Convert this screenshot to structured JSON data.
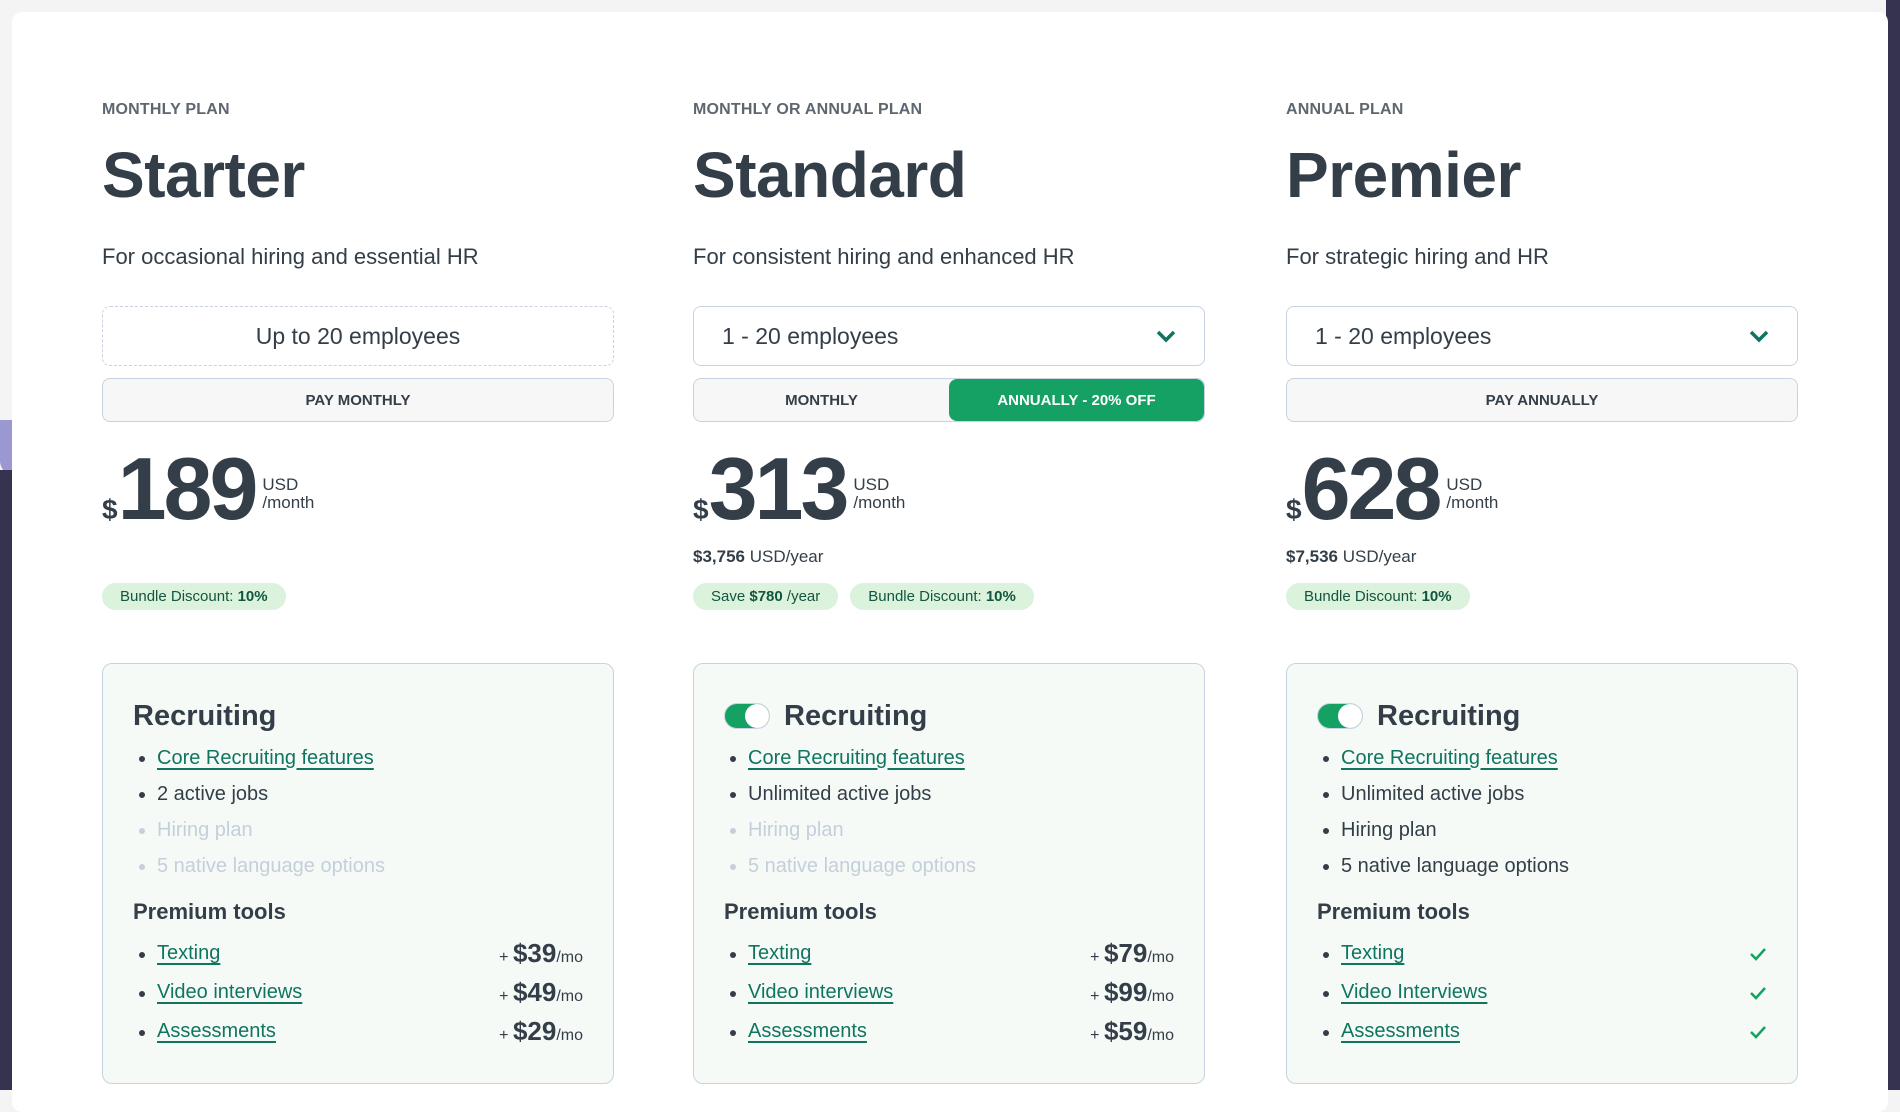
{
  "plans": [
    {
      "kicker": "MONTHLY PLAN",
      "name": "Starter",
      "tagline": "For occasional hiring and essential HR",
      "employees": "Up to 20 employees",
      "selector": false,
      "billing": [
        {
          "label": "PAY MONTHLY",
          "active": false
        }
      ],
      "currency": "$",
      "price": "189",
      "unit1": "USD",
      "unit2": "/month",
      "yearly_amount": "",
      "yearly_unit": "",
      "badges": [
        {
          "text": "Bundle Discount: ",
          "bold": "10%",
          "suffix": ""
        }
      ],
      "toggle": false,
      "section": "Recruiting",
      "features": [
        {
          "text": "Core Recruiting features",
          "link": true,
          "dim": false
        },
        {
          "text": "2 active jobs",
          "link": false,
          "dim": false
        },
        {
          "text": "Hiring plan",
          "link": false,
          "dim": true
        },
        {
          "text": "5 native language options",
          "link": false,
          "dim": true
        }
      ],
      "tools_title": "Premium tools",
      "tools": [
        {
          "name": "Texting",
          "plus": "+ ",
          "price": "$39",
          "per": "/mo"
        },
        {
          "name": "Video interviews",
          "plus": "+ ",
          "price": "$49",
          "per": "/mo"
        },
        {
          "name": "Assessments",
          "plus": "+ ",
          "price": "$29",
          "per": "/mo"
        }
      ]
    },
    {
      "kicker": "MONTHLY OR ANNUAL PLAN",
      "name": "Standard",
      "tagline": "For consistent hiring and enhanced HR",
      "employees": "1 - 20 employees",
      "selector": true,
      "billing": [
        {
          "label": "MONTHLY",
          "active": false
        },
        {
          "label": "ANNUALLY - 20% OFF",
          "active": true
        }
      ],
      "currency": "$",
      "price": "313",
      "unit1": "USD",
      "unit2": "/month",
      "yearly_amount": "$3,756",
      "yearly_unit": " USD/year",
      "badges": [
        {
          "text": "Save ",
          "bold": "$780",
          "suffix": " /year"
        },
        {
          "text": "Bundle Discount: ",
          "bold": "10%",
          "suffix": ""
        }
      ],
      "toggle": true,
      "section": "Recruiting",
      "features": [
        {
          "text": "Core Recruiting features",
          "link": true,
          "dim": false
        },
        {
          "text": "Unlimited active jobs",
          "link": false,
          "dim": false
        },
        {
          "text": "Hiring plan",
          "link": false,
          "dim": true
        },
        {
          "text": "5 native language options",
          "link": false,
          "dim": true
        }
      ],
      "tools_title": "Premium tools",
      "tools": [
        {
          "name": "Texting",
          "plus": "+ ",
          "price": "$79",
          "per": "/mo"
        },
        {
          "name": "Video interviews",
          "plus": "+ ",
          "price": "$99",
          "per": "/mo"
        },
        {
          "name": "Assessments",
          "plus": "+ ",
          "price": "$59",
          "per": "/mo"
        }
      ]
    },
    {
      "kicker": "ANNUAL PLAN",
      "name": "Premier",
      "tagline": "For strategic hiring and HR",
      "employees": "1 - 20 employees",
      "selector": true,
      "billing": [
        {
          "label": "PAY ANNUALLY",
          "active": false
        }
      ],
      "currency": "$",
      "price": "628",
      "unit1": "USD",
      "unit2": "/month",
      "yearly_amount": "$7,536",
      "yearly_unit": " USD/year",
      "badges": [
        {
          "text": "Bundle Discount: ",
          "bold": "10%",
          "suffix": ""
        }
      ],
      "toggle": true,
      "section": "Recruiting",
      "features": [
        {
          "text": "Core Recruiting features",
          "link": true,
          "dim": false
        },
        {
          "text": "Unlimited active jobs",
          "link": false,
          "dim": false
        },
        {
          "text": "Hiring plan",
          "link": false,
          "dim": false
        },
        {
          "text": "5 native language options",
          "link": false,
          "dim": false
        }
      ],
      "tools_title": "Premium tools",
      "tools": [
        {
          "name": "Texting",
          "included": true
        },
        {
          "name": "Video Interviews",
          "included": true
        },
        {
          "name": "Assessments",
          "included": true
        }
      ]
    }
  ],
  "colors": {
    "accent": "#15a164",
    "link": "#0f7560",
    "text": "#333e48",
    "badge_bg": "#dbf2dc"
  }
}
